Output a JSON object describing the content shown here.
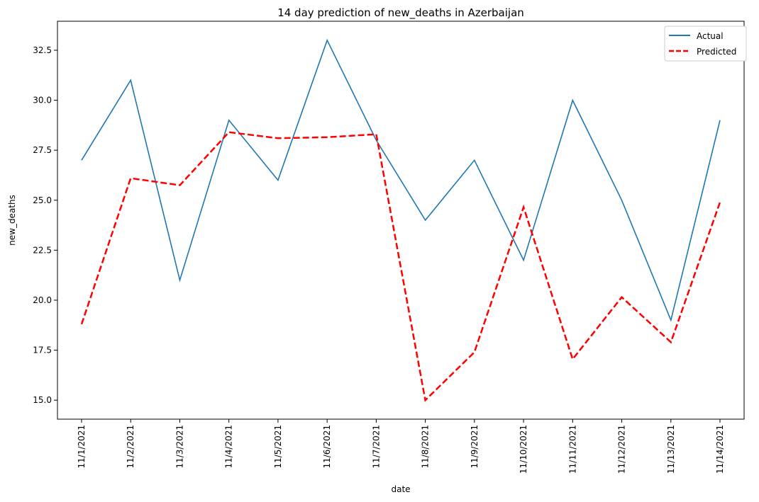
{
  "chart_data": {
    "type": "line",
    "title": "14 day prediction of new_deaths in Azerbaijan",
    "xlabel": "date",
    "ylabel": "new_deaths",
    "categories": [
      "11/1/2021",
      "11/2/2021",
      "11/3/2021",
      "11/4/2021",
      "11/5/2021",
      "11/6/2021",
      "11/7/2021",
      "11/8/2021",
      "11/9/2021",
      "11/10/2021",
      "11/11/2021",
      "11/12/2021",
      "11/13/2021",
      "11/14/2021"
    ],
    "ylim": [
      14.05,
      33.95
    ],
    "yticks": [
      "15.0",
      "17.5",
      "20.0",
      "22.5",
      "25.0",
      "27.5",
      "30.0",
      "32.5"
    ],
    "legend_position": "top-right",
    "grid": false,
    "series": [
      {
        "name": "Actual",
        "color": "#1f77b4",
        "style": "solid",
        "values": [
          27,
          31,
          21,
          29,
          26,
          33,
          28,
          24,
          27,
          22,
          30,
          25,
          19,
          29
        ]
      },
      {
        "name": "Predicted",
        "color": "#ff0000",
        "style": "dashed",
        "values": [
          18.8,
          26.1,
          25.75,
          28.4,
          28.1,
          28.15,
          28.3,
          15.0,
          17.4,
          24.65,
          17.05,
          20.15,
          17.9,
          24.9
        ]
      }
    ]
  }
}
